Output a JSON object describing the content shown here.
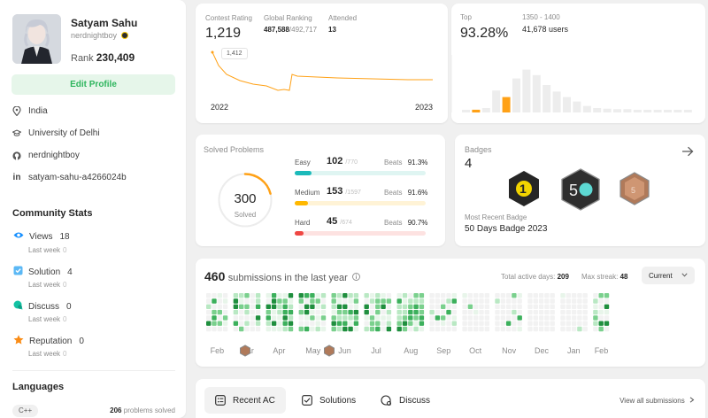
{
  "profile": {
    "name": "Satyam Sahu",
    "handle": "nerdnightboy",
    "rank_label": "Rank",
    "rank_value": "230,409",
    "edit_label": "Edit Profile"
  },
  "info": [
    {
      "icon": "location-icon",
      "text": "India"
    },
    {
      "icon": "school-icon",
      "text": "University of Delhi"
    },
    {
      "icon": "github-icon",
      "text": "nerdnightboy"
    },
    {
      "icon": "linkedin-icon",
      "text": "satyam-sahu-a4266024b"
    }
  ],
  "community": {
    "title": "Community Stats",
    "items": [
      {
        "icon": "eye-icon",
        "label": "Views",
        "value": "18",
        "sub": "Last week",
        "sub_value": "0",
        "color": "#1890ff"
      },
      {
        "icon": "check-square-icon",
        "label": "Solution",
        "value": "4",
        "sub": "Last week",
        "sub_value": "0",
        "color": "#40a9ff"
      },
      {
        "icon": "chat-icon",
        "label": "Discuss",
        "value": "0",
        "sub": "Last week",
        "sub_value": "0",
        "color": "#13c2a3"
      },
      {
        "icon": "star-icon",
        "label": "Reputation",
        "value": "0",
        "sub": "Last week",
        "sub_value": "0",
        "color": "#fa8c16"
      }
    ]
  },
  "languages": {
    "title": "Languages",
    "chip": "C++",
    "count": "206",
    "count_suffix": "problems solved"
  },
  "rating": {
    "contest_label": "Contest Rating",
    "contest_value": "1,219",
    "global_label": "Global Ranking",
    "global_value": "487,588",
    "global_total": "/492,717",
    "attended_label": "Attended",
    "attended_value": "13",
    "tooltip": "1,412",
    "x_start": "2022",
    "x_end": "2023"
  },
  "top": {
    "label": "Top",
    "value": "93.28%",
    "range": "1350 - 1400",
    "users": "41,678 users",
    "histogram": [
      0.05,
      0.05,
      0.08,
      0.4,
      0.28,
      0.62,
      0.78,
      0.68,
      0.5,
      0.38,
      0.28,
      0.2,
      0.12,
      0.08,
      0.07,
      0.06,
      0.06,
      0.05,
      0.05,
      0.05,
      0.05,
      0.05,
      0.05
    ],
    "highlight": [
      1,
      4
    ]
  },
  "solved": {
    "title": "Solved Problems",
    "total": "300",
    "total_label": "Solved",
    "rows": [
      {
        "name": "Easy",
        "count": "102",
        "total": "/770",
        "beats_label": "Beats",
        "beats": "91.3%",
        "fraction": 0.13,
        "color": "#1cbaba",
        "track": "#dff5f2"
      },
      {
        "name": "Medium",
        "count": "153",
        "total": "/1597",
        "beats_label": "Beats",
        "beats": "91.6%",
        "fraction": 0.1,
        "color": "#ffb800",
        "track": "#fff3d6"
      },
      {
        "name": "Hard",
        "count": "45",
        "total": "/674",
        "beats_label": "Beats",
        "beats": "90.7%",
        "fraction": 0.07,
        "color": "#ef4743",
        "track": "#fde2e1"
      }
    ]
  },
  "badges": {
    "title": "Badges",
    "count": "4",
    "recent_label": "Most Recent Badge",
    "recent_name": "50 Days Badge 2023"
  },
  "submissions": {
    "count": "460",
    "suffix": "submissions in the last year",
    "active_label": "Total active days:",
    "active_value": "209",
    "streak_label": "Max streak:",
    "streak_value": "48",
    "select": "Current",
    "months": [
      "Feb",
      "Mar",
      "Apr",
      "May",
      "Jun",
      "Jul",
      "Aug",
      "Sep",
      "Oct",
      "Nov",
      "Dec",
      "Jan",
      "Feb"
    ]
  },
  "tabs": {
    "items": [
      {
        "icon": "list-icon",
        "label": "Recent AC"
      },
      {
        "icon": "solution-icon",
        "label": "Solutions"
      },
      {
        "icon": "discuss-icon",
        "label": "Discuss"
      }
    ],
    "view_all": "View all submissions"
  }
}
